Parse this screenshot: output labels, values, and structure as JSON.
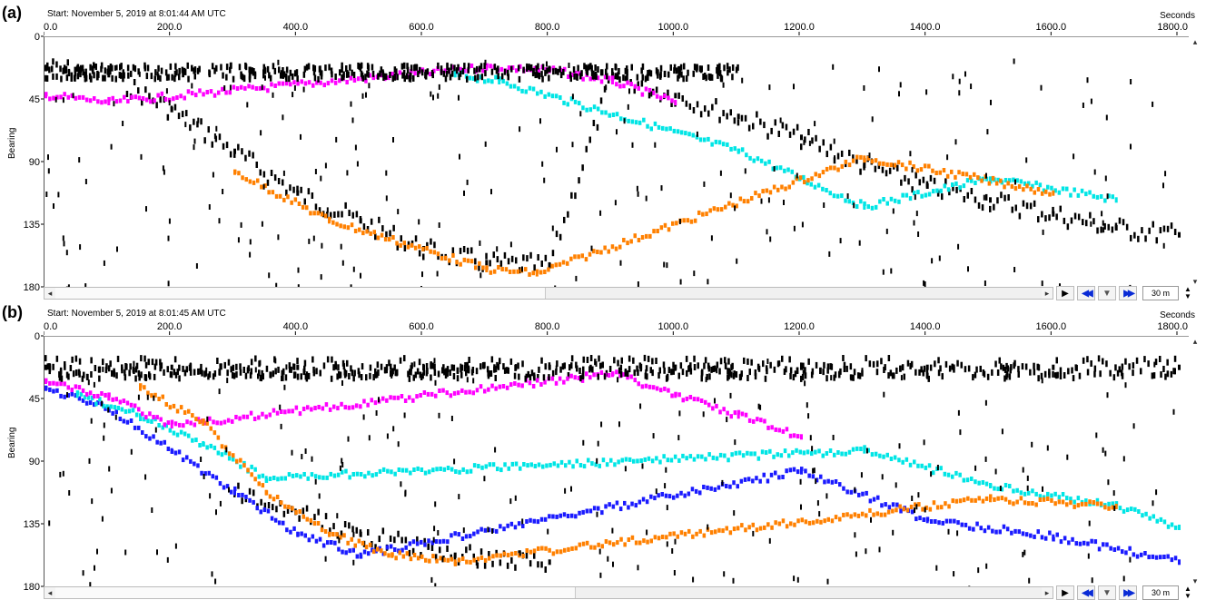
{
  "panels": [
    {
      "letter": "(a)",
      "start_text": "Start: November 5, 2019 at 8:01:44 AM UTC",
      "units_text": "Seconds",
      "ylabel": "Bearing",
      "x_ticks": [
        "0.0",
        "200.0",
        "400.0",
        "600.0",
        "800.0",
        "1000.0",
        "1200.0",
        "1400.0",
        "1600.0",
        "1800.0"
      ],
      "y_ticks": [
        "0",
        "45",
        "90",
        "135",
        "180"
      ],
      "zoom_value": "30 m",
      "scroll_position": 0.49
    },
    {
      "letter": "(b)",
      "start_text": "Start: November 5, 2019 at 8:01:45 AM UTC",
      "units_text": "Seconds",
      "ylabel": "Bearing",
      "x_ticks": [
        "0.0",
        "200.0",
        "400.0",
        "600.0",
        "800.0",
        "1000.0",
        "1200.0",
        "1400.0",
        "1600.0",
        "1800.0"
      ],
      "y_ticks": [
        "0",
        "45",
        "90",
        "135",
        "180"
      ],
      "zoom_value": "30 m",
      "scroll_position": 0.52
    }
  ],
  "controls": {
    "play": "▶",
    "rewind": "◀◀",
    "down": "▼",
    "forward": "▶▶",
    "scroll_left": "◂",
    "scroll_right": "▸",
    "scroll_up": "▴",
    "scroll_down": "▾",
    "spin_up": "▲",
    "spin_down": "▼"
  },
  "colors": {
    "detections": "#000000",
    "tracks": [
      "#ff00ff",
      "#00e5e5",
      "#1a1aff",
      "#ff8000",
      "#00cc00",
      "#ffff00",
      "#ff69b4",
      "#2e8b57",
      "#c0c0c0",
      "#8a2be2",
      "#ff0000",
      "#1e90ff"
    ]
  },
  "chart_data": [
    {
      "type": "scatter",
      "xlim": [
        0,
        1800
      ],
      "ylim": [
        0,
        180
      ],
      "y_inverted": true,
      "xlabel": "Seconds",
      "ylabel": "Bearing",
      "series": [
        {
          "name": "",
          "color": "#000000",
          "points": [
            [
              0,
              20
            ],
            [
              100,
              25
            ],
            [
              200,
              50
            ],
            [
              300,
              80
            ],
            [
              400,
              110
            ],
            [
              500,
              130
            ],
            [
              600,
              150
            ],
            [
              700,
              160
            ],
            [
              800,
              162
            ],
            [
              900,
              25
            ],
            [
              1000,
              40
            ],
            [
              1100,
              55
            ],
            [
              1200,
              70
            ],
            [
              1300,
              90
            ],
            [
              1400,
              105
            ],
            [
              1500,
              115
            ],
            [
              1600,
              125
            ],
            [
              1700,
              135
            ],
            [
              1800,
              140
            ]
          ]
        },
        {
          "name": "",
          "color": "#ff00ff",
          "points": [
            [
              0,
              40
            ],
            [
              100,
              45
            ],
            [
              700,
              20
            ],
            [
              800,
              22
            ],
            [
              900,
              30
            ],
            [
              1000,
              45
            ]
          ]
        },
        {
          "name": "",
          "color": "#00e5e5",
          "points": [
            [
              650,
              25
            ],
            [
              720,
              30
            ],
            [
              1100,
              80
            ],
            [
              1300,
              120
            ],
            [
              1500,
              100
            ],
            [
              1700,
              115
            ]
          ]
        },
        {
          "name": "",
          "color": "#ff8000",
          "points": [
            [
              300,
              95
            ],
            [
              450,
              130
            ],
            [
              700,
              165
            ],
            [
              780,
              168
            ],
            [
              1300,
              85
            ],
            [
              1600,
              110
            ]
          ]
        }
      ]
    },
    {
      "type": "scatter",
      "xlim": [
        0,
        1800
      ],
      "ylim": [
        0,
        180
      ],
      "y_inverted": true,
      "xlabel": "Seconds",
      "ylabel": "Bearing",
      "series": [
        {
          "name": "",
          "color": "#000000",
          "points": [
            [
              0,
              20
            ],
            [
              200,
              20
            ],
            [
              400,
              20
            ],
            [
              600,
              20
            ],
            [
              800,
              20
            ],
            [
              1000,
              20
            ],
            [
              1200,
              20
            ],
            [
              1400,
              20
            ],
            [
              1600,
              20
            ],
            [
              1800,
              20
            ],
            [
              300,
              110
            ],
            [
              500,
              140
            ],
            [
              650,
              155
            ],
            [
              800,
              160
            ]
          ]
        },
        {
          "name": "",
          "color": "#1a1aff",
          "points": [
            [
              0,
              35
            ],
            [
              100,
              50
            ],
            [
              200,
              80
            ],
            [
              300,
              110
            ],
            [
              400,
              140
            ],
            [
              500,
              155
            ],
            [
              1200,
              95
            ],
            [
              1400,
              130
            ],
            [
              1600,
              142
            ],
            [
              1800,
              160
            ]
          ]
        },
        {
          "name": "",
          "color": "#00e5e5",
          "points": [
            [
              50,
              40
            ],
            [
              150,
              55
            ],
            [
              250,
              75
            ],
            [
              350,
              100
            ],
            [
              1300,
              80
            ],
            [
              1500,
              105
            ],
            [
              1700,
              120
            ],
            [
              1800,
              135
            ]
          ]
        },
        {
          "name": "",
          "color": "#ff00ff",
          "points": [
            [
              0,
              30
            ],
            [
              100,
              42
            ],
            [
              200,
              62
            ],
            [
              900,
              25
            ],
            [
              1000,
              40
            ],
            [
              1100,
              55
            ],
            [
              1200,
              70
            ]
          ]
        },
        {
          "name": "",
          "color": "#ff8000",
          "points": [
            [
              150,
              35
            ],
            [
              250,
              60
            ],
            [
              350,
              110
            ],
            [
              450,
              140
            ],
            [
              550,
              155
            ],
            [
              650,
              160
            ],
            [
              1500,
              115
            ],
            [
              1700,
              120
            ]
          ]
        }
      ]
    }
  ]
}
